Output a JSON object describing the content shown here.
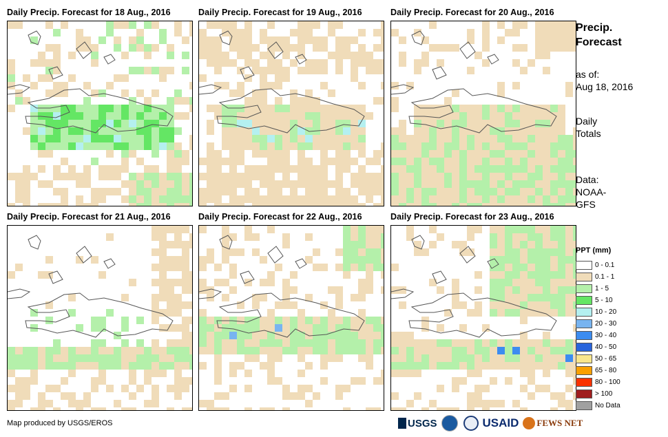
{
  "panels": [
    {
      "title": "Daily Precip. Forecast for 18 Aug., 2016",
      "date": "18 Aug., 2016"
    },
    {
      "title": "Daily Precip. Forecast for 19 Aug., 2016",
      "date": "19 Aug., 2016"
    },
    {
      "title": "Daily Precip. Forecast for 20 Aug., 2016",
      "date": "20 Aug., 2016"
    },
    {
      "title": "Daily Precip. Forecast for 21 Aug., 2016",
      "date": "21 Aug., 2016"
    },
    {
      "title": "Daily Precip. Forecast for 22 Aug., 2016",
      "date": "22 Aug., 2016"
    },
    {
      "title": "Daily Precip. Forecast for 23 Aug., 2016",
      "date": "23 Aug., 2016"
    }
  ],
  "sidebar": {
    "title_line1": "Precip.",
    "title_line2": "Forecast",
    "asof_line1": "as of:",
    "asof_line2": "Aug 18, 2016",
    "totals_line1": "Daily",
    "totals_line2": "Totals",
    "data_line1": "Data:",
    "data_line2": "NOAA-",
    "data_line3": "GFS"
  },
  "legend": {
    "title": "PPT (mm)",
    "items": [
      {
        "label": "0 - 0.1",
        "color": "#ffffff"
      },
      {
        "label": "0.1 - 1",
        "color": "#f0dcb9"
      },
      {
        "label": "1 - 5",
        "color": "#b4f0aa"
      },
      {
        "label": "5 - 10",
        "color": "#64e664"
      },
      {
        "label": "10 - 20",
        "color": "#b4f0f0"
      },
      {
        "label": "20 - 30",
        "color": "#78b4f0"
      },
      {
        "label": "30 - 40",
        "color": "#3c8cf0"
      },
      {
        "label": "40 - 50",
        "color": "#2864dc"
      },
      {
        "label": "50 - 65",
        "color": "#fae68c"
      },
      {
        "label": "65 - 80",
        "color": "#faa000"
      },
      {
        "label": "80 - 100",
        "color": "#fa3200"
      },
      {
        "label": "> 100",
        "color": "#a01e1e"
      },
      {
        "label": "No Data",
        "color": "#a0a0a0"
      }
    ]
  },
  "credit": "Map produced by USGS/EROS",
  "logos": {
    "usgs": "USGS",
    "usaid": "USAID",
    "fews": "FEWS NET",
    "icons": [
      "usgs-logo-icon",
      "noaa-logo-icon",
      "dos-seal-icon",
      "usaid-logo-icon",
      "fewsnet-logo-icon"
    ]
  }
}
